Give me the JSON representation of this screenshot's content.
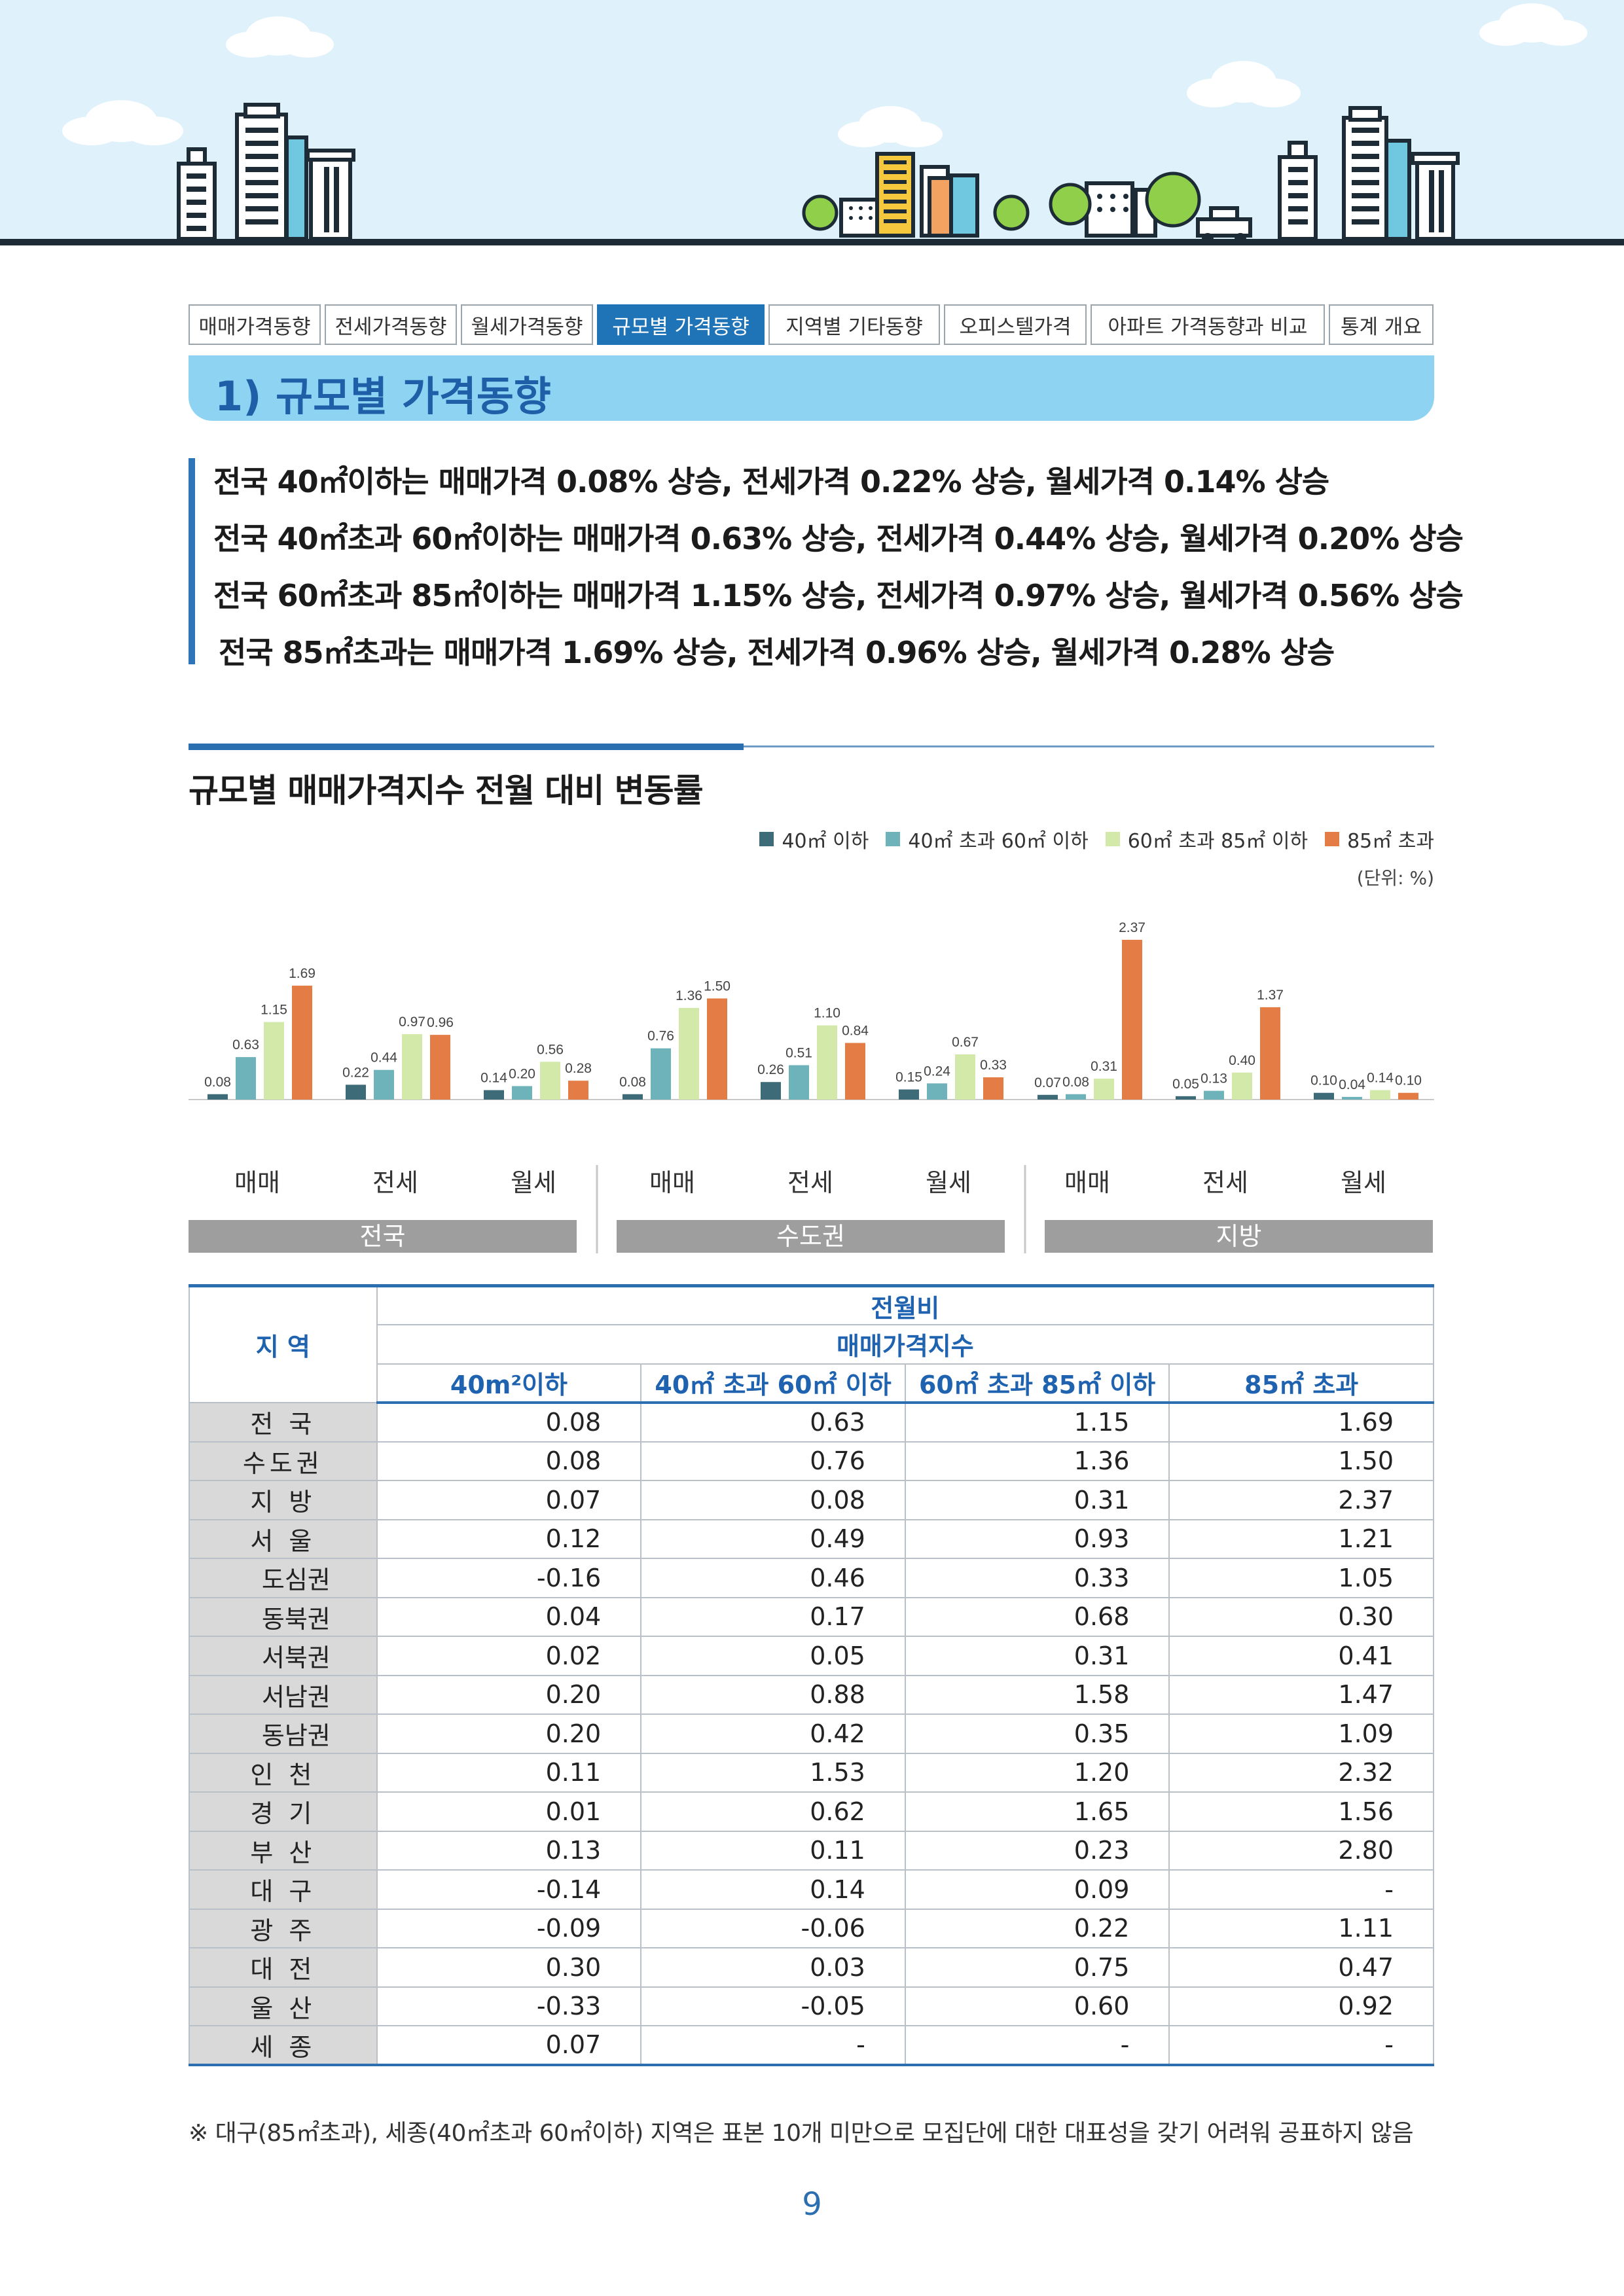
{
  "tabs": [
    "매매가격동향",
    "전세가격동향",
    "월세가격동향",
    "규모별 가격동향",
    "지역별 기타동향",
    "오피스텔가격",
    "아파트 가격동향과 비교",
    "통계 개요"
  ],
  "active_tab_index": 3,
  "section_title": "1) 규모별 가격동향",
  "summary": [
    "전국 40㎡이하는 매매가격 0.08% 상승, 전세가격 0.22% 상승, 월세가격 0.14% 상승",
    "전국 40㎡초과 60㎡이하는 매매가격 0.63% 상승, 전세가격 0.44% 상승, 월세가격 0.20% 상승",
    "전국 60㎡초과 85㎡이하는 매매가격 1.15% 상승, 전세가격 0.97% 상승, 월세가격 0.56% 상승",
    "전국 85㎡초과는 매매가격 1.69% 상승, 전세가격 0.96% 상승, 월세가격 0.28% 상승"
  ],
  "chart_title": "규모별 매매가격지수 전월 대비 변동률",
  "chart_data": {
    "type": "bar",
    "unit": "(단위: %)",
    "series": [
      {
        "name": "40㎡ 이하",
        "color": "#3d6b77"
      },
      {
        "name": "40㎡ 초과 60㎡ 이하",
        "color": "#6fb3ba"
      },
      {
        "name": "60㎡ 초과 85㎡ 이하",
        "color": "#d2e9a9"
      },
      {
        "name": "85㎡ 초과",
        "color": "#e47d45"
      }
    ],
    "groups": [
      {
        "name": "전국",
        "categories": [
          {
            "label": "매매",
            "values": [
              0.08,
              0.63,
              1.15,
              1.69
            ]
          },
          {
            "label": "전세",
            "values": [
              0.22,
              0.44,
              0.97,
              0.96
            ]
          },
          {
            "label": "월세",
            "values": [
              0.14,
              0.2,
              0.56,
              0.28
            ]
          }
        ]
      },
      {
        "name": "수도권",
        "categories": [
          {
            "label": "매매",
            "values": [
              0.08,
              0.76,
              1.36,
              1.5
            ]
          },
          {
            "label": "전세",
            "values": [
              0.26,
              0.51,
              1.1,
              0.84
            ]
          },
          {
            "label": "월세",
            "values": [
              0.15,
              0.24,
              0.67,
              0.33
            ]
          }
        ]
      },
      {
        "name": "지방",
        "categories": [
          {
            "label": "매매",
            "values": [
              0.07,
              0.08,
              0.31,
              2.37
            ]
          },
          {
            "label": "전세",
            "values": [
              0.05,
              0.13,
              0.4,
              1.37
            ]
          },
          {
            "label": "월세",
            "values": [
              0.1,
              0.04,
              0.14,
              0.1
            ]
          }
        ]
      }
    ],
    "ylim": [
      0,
      2.5
    ]
  },
  "table": {
    "header_region": "지 역",
    "header_top": "전월비",
    "header_mid": "매매가격지수",
    "columns": [
      "40m²이하",
      "40㎡ 초과 60㎡ 이하",
      "60㎡ 초과 85㎡ 이하",
      "85㎡ 초과"
    ],
    "rows": [
      {
        "region": "전 국",
        "sub": false,
        "values": [
          "0.08",
          "0.63",
          "1.15",
          "1.69"
        ]
      },
      {
        "region": "수도권",
        "sub": false,
        "values": [
          "0.08",
          "0.76",
          "1.36",
          "1.50"
        ]
      },
      {
        "region": "지 방",
        "sub": false,
        "values": [
          "0.07",
          "0.08",
          "0.31",
          "2.37"
        ]
      },
      {
        "region": "서 울",
        "sub": false,
        "values": [
          "0.12",
          "0.49",
          "0.93",
          "1.21"
        ]
      },
      {
        "region": "도심권",
        "sub": true,
        "values": [
          "-0.16",
          "0.46",
          "0.33",
          "1.05"
        ]
      },
      {
        "region": "동북권",
        "sub": true,
        "values": [
          "0.04",
          "0.17",
          "0.68",
          "0.30"
        ]
      },
      {
        "region": "서북권",
        "sub": true,
        "values": [
          "0.02",
          "0.05",
          "0.31",
          "0.41"
        ]
      },
      {
        "region": "서남권",
        "sub": true,
        "values": [
          "0.20",
          "0.88",
          "1.58",
          "1.47"
        ]
      },
      {
        "region": "동남권",
        "sub": true,
        "values": [
          "0.20",
          "0.42",
          "0.35",
          "1.09"
        ]
      },
      {
        "region": "인 천",
        "sub": false,
        "values": [
          "0.11",
          "1.53",
          "1.20",
          "2.32"
        ]
      },
      {
        "region": "경 기",
        "sub": false,
        "values": [
          "0.01",
          "0.62",
          "1.65",
          "1.56"
        ]
      },
      {
        "region": "부 산",
        "sub": false,
        "values": [
          "0.13",
          "0.11",
          "0.23",
          "2.80"
        ]
      },
      {
        "region": "대 구",
        "sub": false,
        "values": [
          "-0.14",
          "0.14",
          "0.09",
          "-"
        ]
      },
      {
        "region": "광 주",
        "sub": false,
        "values": [
          "-0.09",
          "-0.06",
          "0.22",
          "1.11"
        ]
      },
      {
        "region": "대 전",
        "sub": false,
        "values": [
          "0.30",
          "0.03",
          "0.75",
          "0.47"
        ]
      },
      {
        "region": "울 산",
        "sub": false,
        "values": [
          "-0.33",
          "-0.05",
          "0.60",
          "0.92"
        ]
      },
      {
        "region": "세 종",
        "sub": false,
        "values": [
          "0.07",
          "-",
          "-",
          "-"
        ]
      }
    ]
  },
  "note": "※ 대구(85㎡초과), 세종(40㎡초과 60㎡이하) 지역은 표본 10개 미만으로 모집단에 대한 대표성을 갖기 어려워 공표하지 않음",
  "page_number": "9"
}
